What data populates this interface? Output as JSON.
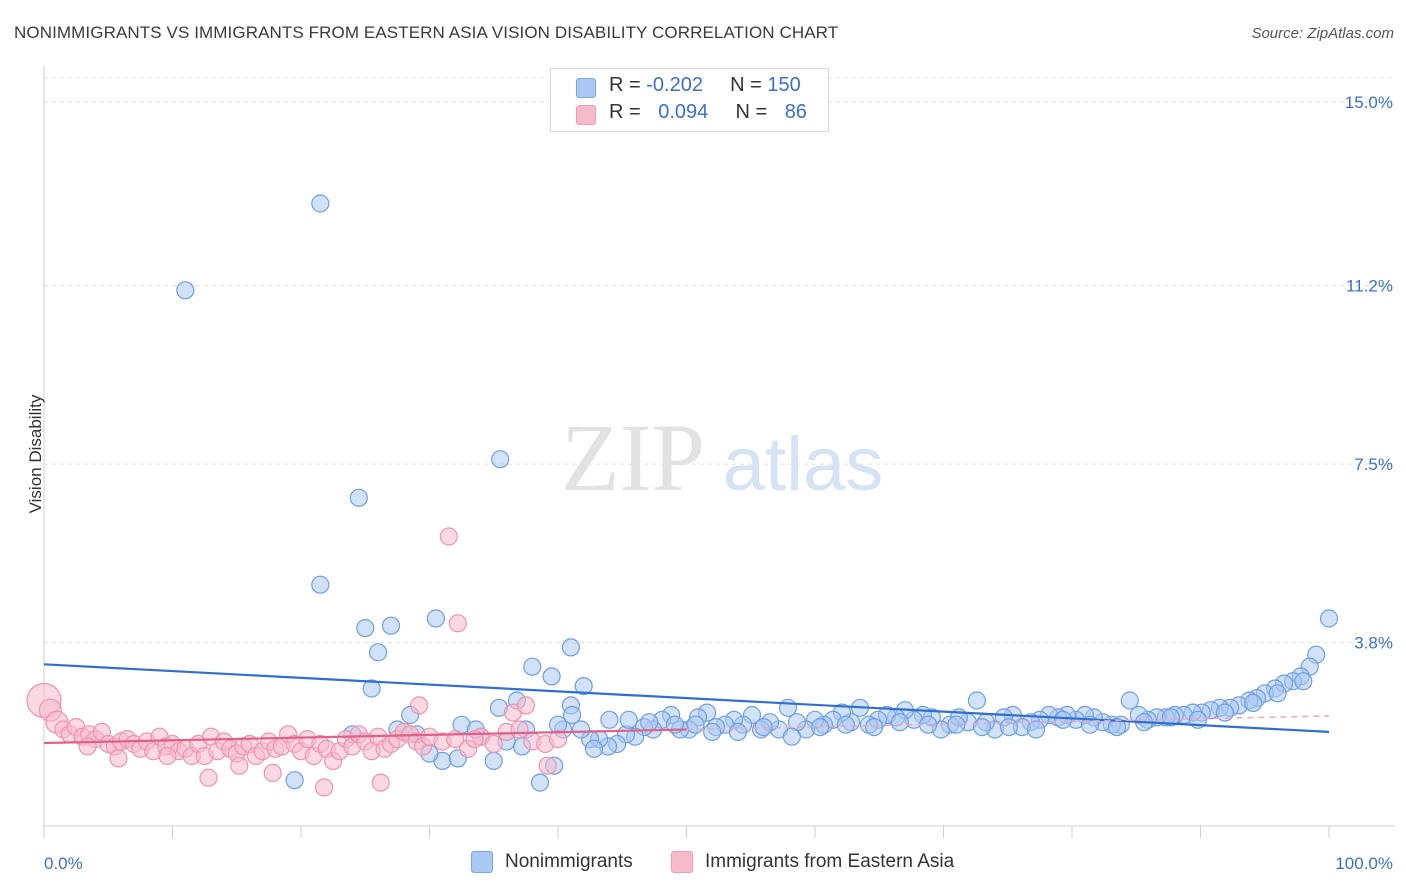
{
  "title": "NONIMMIGRANTS VS IMMIGRANTS FROM EASTERN ASIA VISION DISABILITY CORRELATION CHART",
  "source": "Source: ZipAtlas.com",
  "watermark": {
    "zip": "ZIP",
    "atlas": "atlas"
  },
  "legend_top": [
    {
      "r_label": "R = ",
      "r_value": "-0.202",
      "n_label": "N = ",
      "n_value": "150",
      "color": "#aac8f2"
    },
    {
      "r_label": "R = ",
      "r_value": "0.094",
      "n_label": "N = ",
      "n_value": "86",
      "color": "#f7b9cc"
    }
  ],
  "legend_bottom": [
    {
      "label": "Nonimmigrants",
      "color": "#aac8f2"
    },
    {
      "label": "Immigrants from Eastern Asia",
      "color": "#f7b9cc"
    }
  ],
  "chart_data": {
    "type": "scatter",
    "title": "NONIMMIGRANTS VS IMMIGRANTS FROM EASTERN ASIA VISION DISABILITY CORRELATION CHART",
    "xlabel": "",
    "ylabel": "Vision Disability",
    "xlim": [
      0,
      100
    ],
    "ylim": [
      0,
      15.5
    ],
    "x_tick_labels": [
      "0.0%",
      "100.0%"
    ],
    "y_ticks": [
      3.8,
      7.5,
      11.2,
      15.0
    ],
    "y_tick_labels": [
      "3.8%",
      "7.5%",
      "11.2%",
      "15.0%"
    ],
    "grid": true,
    "legend_position": "top-center",
    "series": [
      {
        "name": "Nonimmigrants",
        "color": "#7aa7e6",
        "trend": {
          "x": [
            0,
            100
          ],
          "y": [
            3.35,
            1.95
          ],
          "color": "#2f6fd1"
        },
        "points": [
          [
            11,
            11.1
          ],
          [
            21.5,
            12.9
          ],
          [
            24.5,
            6.8
          ],
          [
            35.5,
            7.6
          ],
          [
            21.5,
            5.0
          ],
          [
            25,
            4.1
          ],
          [
            27,
            4.15
          ],
          [
            30.5,
            4.3
          ],
          [
            26,
            3.6
          ],
          [
            41,
            3.7
          ],
          [
            38,
            3.3
          ],
          [
            39.5,
            3.1
          ],
          [
            42,
            2.9
          ],
          [
            25.5,
            2.85
          ],
          [
            41,
            2.5
          ],
          [
            100,
            4.3
          ],
          [
            99,
            3.55
          ],
          [
            98.5,
            3.3
          ],
          [
            97.8,
            3.1
          ],
          [
            97.2,
            3.0
          ],
          [
            96.5,
            2.95
          ],
          [
            95.8,
            2.85
          ],
          [
            95,
            2.75
          ],
          [
            94.4,
            2.65
          ],
          [
            93.8,
            2.6
          ],
          [
            93,
            2.5
          ],
          [
            92.3,
            2.45
          ],
          [
            91.5,
            2.45
          ],
          [
            90.8,
            2.4
          ],
          [
            90.1,
            2.35
          ],
          [
            89.4,
            2.35
          ],
          [
            88.7,
            2.3
          ],
          [
            88,
            2.3
          ],
          [
            87.3,
            2.25
          ],
          [
            86.6,
            2.25
          ],
          [
            85.9,
            2.2
          ],
          [
            85.2,
            2.3
          ],
          [
            84.5,
            2.6
          ],
          [
            83.8,
            2.1
          ],
          [
            83.1,
            2.1
          ],
          [
            82.4,
            2.15
          ],
          [
            81.7,
            2.25
          ],
          [
            81,
            2.3
          ],
          [
            80.3,
            2.2
          ],
          [
            79.6,
            2.3
          ],
          [
            78.9,
            2.25
          ],
          [
            78.2,
            2.3
          ],
          [
            77.5,
            2.2
          ],
          [
            76.8,
            2.15
          ],
          [
            76.1,
            2.05
          ],
          [
            75.4,
            2.3
          ],
          [
            74.7,
            2.25
          ],
          [
            74,
            2.0
          ],
          [
            73.3,
            2.15
          ],
          [
            72.6,
            2.6
          ],
          [
            71.9,
            2.15
          ],
          [
            71.2,
            2.25
          ],
          [
            70.5,
            2.1
          ],
          [
            69.8,
            2.0
          ],
          [
            69.1,
            2.25
          ],
          [
            68.4,
            2.3
          ],
          [
            67.7,
            2.2
          ],
          [
            67,
            2.4
          ],
          [
            66.3,
            2.25
          ],
          [
            65.6,
            2.3
          ],
          [
            64.9,
            2.2
          ],
          [
            64.2,
            2.1
          ],
          [
            63.5,
            2.45
          ],
          [
            62.8,
            2.15
          ],
          [
            62.1,
            2.35
          ],
          [
            61.4,
            2.2
          ],
          [
            60.7,
            2.1
          ],
          [
            60,
            2.2
          ],
          [
            59.3,
            2.0
          ],
          [
            58.6,
            2.15
          ],
          [
            57.9,
            2.45
          ],
          [
            57.2,
            2.0
          ],
          [
            56.5,
            2.15
          ],
          [
            55.8,
            2.0
          ],
          [
            55.1,
            2.3
          ],
          [
            54.4,
            2.1
          ],
          [
            53.7,
            2.2
          ],
          [
            53,
            2.1
          ],
          [
            52.3,
            2.05
          ],
          [
            51.6,
            2.35
          ],
          [
            50.9,
            2.25
          ],
          [
            50.2,
            2.0
          ],
          [
            49.5,
            2.0
          ],
          [
            48.8,
            2.3
          ],
          [
            48.1,
            2.2
          ],
          [
            47.4,
            2.0
          ],
          [
            46.7,
            2.05
          ],
          [
            46,
            1.85
          ],
          [
            45.3,
            1.9
          ],
          [
            44.6,
            1.7
          ],
          [
            43.9,
            1.65
          ],
          [
            43.2,
            1.8
          ],
          [
            42.5,
            1.8
          ],
          [
            41.8,
            2.0
          ],
          [
            41.1,
            2.3
          ],
          [
            40.4,
            2.0
          ],
          [
            39.7,
            1.25
          ],
          [
            38.6,
            0.9
          ],
          [
            37.2,
            1.65
          ],
          [
            36,
            1.75
          ],
          [
            35,
            1.35
          ],
          [
            34,
            1.85
          ],
          [
            32.5,
            2.1
          ],
          [
            31,
            1.35
          ],
          [
            30,
            1.5
          ],
          [
            29,
            1.9
          ],
          [
            28.5,
            2.3
          ],
          [
            27.5,
            2.0
          ],
          [
            36.8,
            2.6
          ],
          [
            37.5,
            2.0
          ],
          [
            35.4,
            2.45
          ],
          [
            33.6,
            2.0
          ],
          [
            24,
            1.9
          ],
          [
            19.5,
            0.95
          ],
          [
            40,
            2.1
          ],
          [
            42.8,
            1.6
          ],
          [
            44,
            2.2
          ],
          [
            45.5,
            2.2
          ],
          [
            47.1,
            2.15
          ],
          [
            49.1,
            2.1
          ],
          [
            50.7,
            2.1
          ],
          [
            52,
            1.95
          ],
          [
            54,
            1.95
          ],
          [
            56,
            2.05
          ],
          [
            58.2,
            1.85
          ],
          [
            60.4,
            2.05
          ],
          [
            62.4,
            2.1
          ],
          [
            64.6,
            2.05
          ],
          [
            66.6,
            2.15
          ],
          [
            68.8,
            2.1
          ],
          [
            71,
            2.1
          ],
          [
            73,
            2.05
          ],
          [
            75.1,
            2.05
          ],
          [
            77.2,
            2.0
          ],
          [
            79.3,
            2.2
          ],
          [
            81.4,
            2.1
          ],
          [
            83.5,
            2.05
          ],
          [
            85.6,
            2.15
          ],
          [
            87.7,
            2.25
          ],
          [
            89.8,
            2.2
          ],
          [
            91.9,
            2.35
          ],
          [
            94.1,
            2.55
          ],
          [
            96,
            2.75
          ],
          [
            98,
            3.0
          ],
          [
            32.2,
            1.4
          ]
        ]
      },
      {
        "name": "Immigrants from Eastern Asia",
        "color": "#f29bb6",
        "trend": {
          "x": [
            0,
            50
          ],
          "y": [
            1.72,
            2.0
          ],
          "color": "#e0608a",
          "dashed_extension": {
            "x": [
              50,
              100
            ],
            "y": [
              2.0,
              2.28
            ]
          }
        },
        "points": [
          [
            0,
            2.6
          ],
          [
            0.5,
            2.4
          ],
          [
            1,
            2.15
          ],
          [
            1.5,
            2.0
          ],
          [
            2,
            1.9
          ],
          [
            2.5,
            2.05
          ],
          [
            3,
            1.85
          ],
          [
            3.5,
            1.9
          ],
          [
            4,
            1.8
          ],
          [
            4.5,
            1.95
          ],
          [
            5,
            1.7
          ],
          [
            5.5,
            1.65
          ],
          [
            6,
            1.75
          ],
          [
            6.5,
            1.8
          ],
          [
            7,
            1.7
          ],
          [
            7.5,
            1.6
          ],
          [
            8,
            1.75
          ],
          [
            8.5,
            1.55
          ],
          [
            9,
            1.85
          ],
          [
            9.5,
            1.65
          ],
          [
            10,
            1.7
          ],
          [
            10.5,
            1.55
          ],
          [
            11,
            1.6
          ],
          [
            11.5,
            1.45
          ],
          [
            12,
            1.7
          ],
          [
            12.5,
            1.45
          ],
          [
            13,
            1.85
          ],
          [
            13.5,
            1.55
          ],
          [
            14,
            1.75
          ],
          [
            14.5,
            1.6
          ],
          [
            15,
            1.5
          ],
          [
            15.5,
            1.65
          ],
          [
            16,
            1.7
          ],
          [
            16.5,
            1.45
          ],
          [
            17,
            1.55
          ],
          [
            17.5,
            1.75
          ],
          [
            18,
            1.6
          ],
          [
            18.5,
            1.65
          ],
          [
            19,
            1.9
          ],
          [
            19.5,
            1.7
          ],
          [
            20,
            1.55
          ],
          [
            20.5,
            1.8
          ],
          [
            21,
            1.45
          ],
          [
            21.5,
            1.7
          ],
          [
            22,
            1.6
          ],
          [
            22.5,
            1.35
          ],
          [
            23,
            1.55
          ],
          [
            23.5,
            1.8
          ],
          [
            24,
            1.65
          ],
          [
            24.5,
            1.9
          ],
          [
            25,
            1.75
          ],
          [
            25.5,
            1.55
          ],
          [
            26,
            1.85
          ],
          [
            26.5,
            1.6
          ],
          [
            27,
            1.7
          ],
          [
            27.5,
            1.8
          ],
          [
            28,
            1.95
          ],
          [
            28.5,
            1.9
          ],
          [
            29,
            1.75
          ],
          [
            29.5,
            1.65
          ],
          [
            30,
            1.85
          ],
          [
            31,
            1.75
          ],
          [
            32,
            1.8
          ],
          [
            33,
            1.6
          ],
          [
            34,
            1.85
          ],
          [
            35,
            1.7
          ],
          [
            36,
            1.95
          ],
          [
            37,
            2.0
          ],
          [
            38,
            1.75
          ],
          [
            39,
            1.7
          ],
          [
            39.2,
            1.25
          ],
          [
            40,
            1.8
          ],
          [
            31.5,
            6.0
          ],
          [
            32.2,
            4.2
          ],
          [
            33.5,
            1.8
          ],
          [
            36.5,
            2.35
          ],
          [
            37.5,
            2.5
          ],
          [
            3.4,
            1.65
          ],
          [
            5.8,
            1.4
          ],
          [
            9.6,
            1.45
          ],
          [
            12.8,
            1.0
          ],
          [
            15.2,
            1.25
          ],
          [
            17.8,
            1.1
          ],
          [
            21.8,
            0.8
          ],
          [
            26.2,
            0.9
          ],
          [
            29.2,
            2.5
          ]
        ]
      }
    ]
  }
}
